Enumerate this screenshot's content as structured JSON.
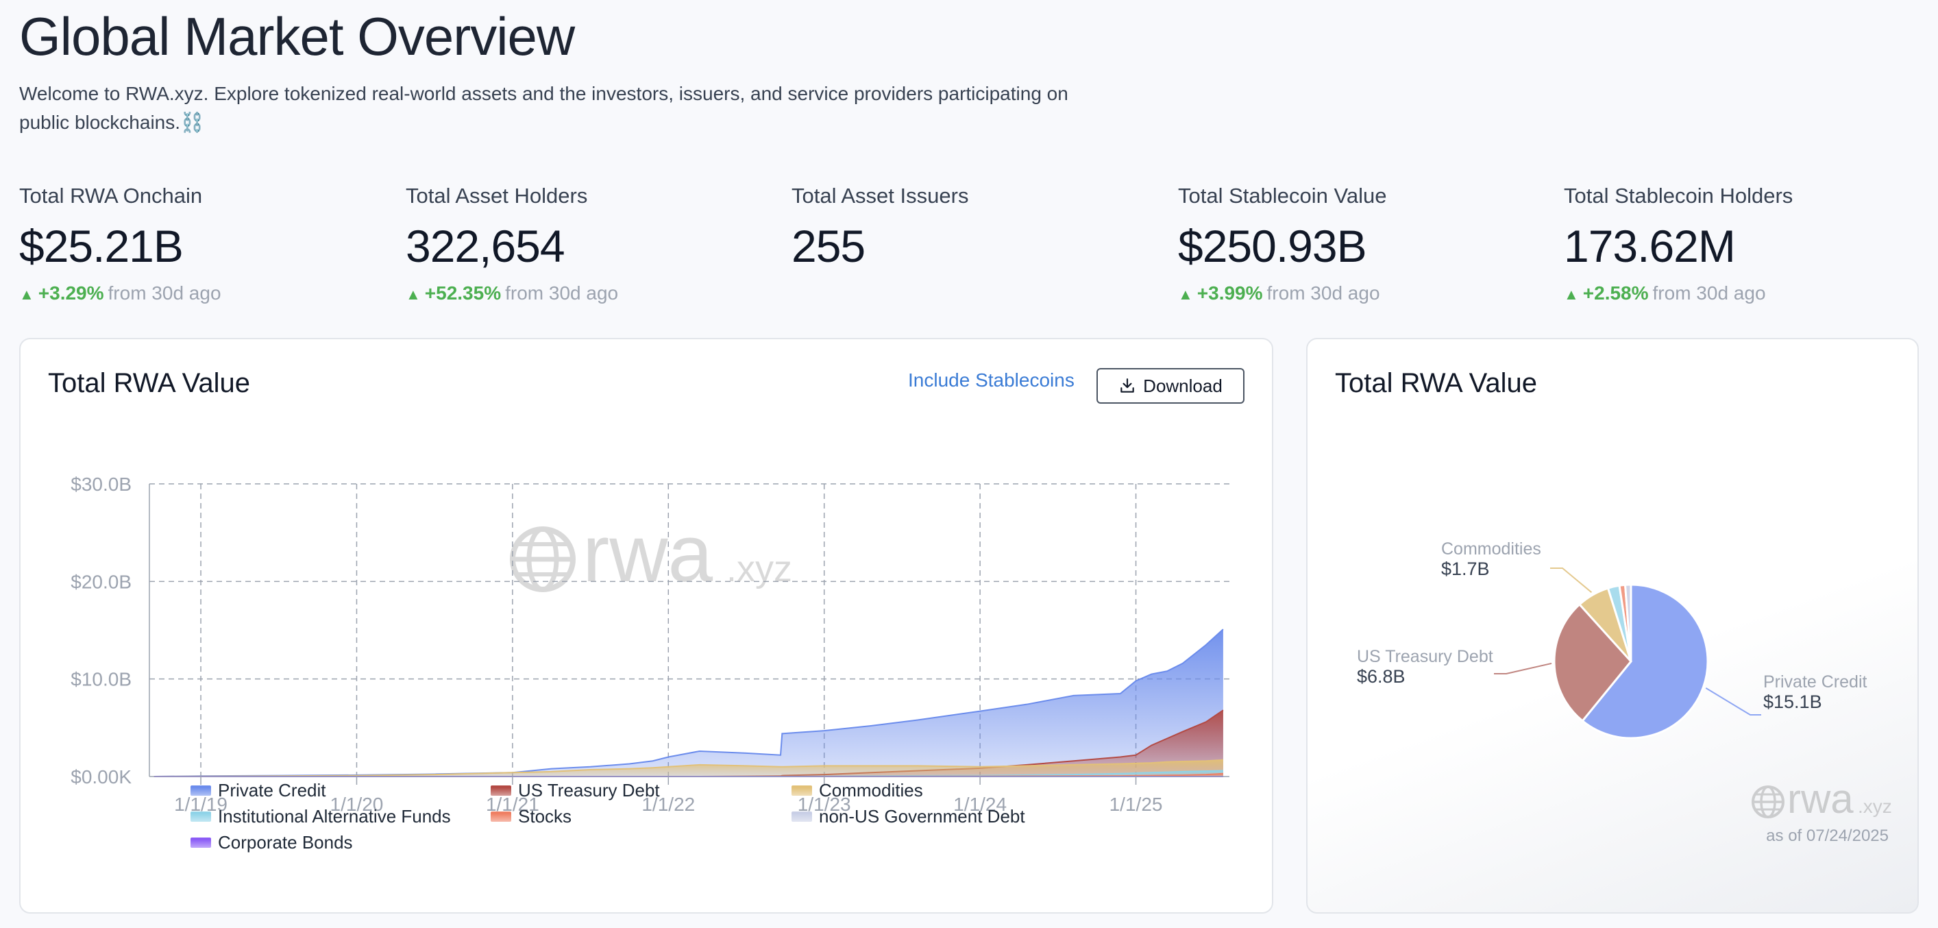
{
  "header": {
    "title": "Global Market Overview",
    "intro": "Welcome to RWA.xyz. Explore tokenized real-world assets and the investors, issuers, and service providers participating on public blockchains.⛓️"
  },
  "stats": [
    {
      "label": "Total RWA Onchain",
      "value": "$25.21B",
      "change": "+3.29%",
      "suffix": "from 30d ago"
    },
    {
      "label": "Total Asset Holders",
      "value": "322,654",
      "change": "+52.35%",
      "suffix": "from 30d ago"
    },
    {
      "label": "Total Asset Issuers",
      "value": "255",
      "change": "",
      "suffix": ""
    },
    {
      "label": "Total Stablecoin Value",
      "value": "$250.93B",
      "change": "+3.99%",
      "suffix": "from 30d ago"
    },
    {
      "label": "Total Stablecoin Holders",
      "value": "173.62M",
      "change": "+2.58%",
      "suffix": "from 30d ago"
    }
  ],
  "area_card": {
    "title": "Total RWA Value",
    "toggle_label": "Include Stablecoins",
    "download_label": "Download",
    "watermark_main": "rwa",
    "watermark_suffix": ".xyz"
  },
  "pie_card": {
    "title": "Total RWA Value",
    "watermark_main": "rwa",
    "watermark_suffix": ".xyz",
    "as_of": "as of 07/24/2025"
  },
  "colors": {
    "accent": "#3a7bd5",
    "positive": "#4caf50",
    "private_credit": "#6b8cec",
    "us_treasury": "#b34a44",
    "commodities": "#e2c178",
    "inst_alt_funds": "#8fd3e8",
    "stocks": "#ef7f63",
    "non_us_gov": "#c9cfe6",
    "corporate_bonds": "#8b5cf6"
  },
  "chart_data": [
    {
      "type": "area",
      "title": "Total RWA Value",
      "xlabel": "",
      "ylabel": "",
      "x_ticks": [
        "1/1/19",
        "1/1/20",
        "1/1/21",
        "1/1/22",
        "1/1/23",
        "1/1/24",
        "1/1/25"
      ],
      "y_ticks": [
        "$0.00K",
        "$10.0B",
        "$20.0B",
        "$30.0B"
      ],
      "ylim": [
        0,
        30
      ],
      "xlim": [
        2018.67,
        2025.6
      ],
      "y_unit": "B",
      "grid": true,
      "legend_position": "bottom",
      "x": [
        2018.7,
        2019.0,
        2019.5,
        2020.0,
        2020.5,
        2021.0,
        2021.25,
        2021.5,
        2021.75,
        2021.9,
        2022.0,
        2022.2,
        2022.5,
        2022.72,
        2022.73,
        2023.0,
        2023.3,
        2023.6,
        2024.0,
        2024.3,
        2024.6,
        2024.9,
        2025.0,
        2025.1,
        2025.2,
        2025.3,
        2025.45,
        2025.56
      ],
      "series": [
        {
          "name": "Private Credit",
          "values": [
            0,
            0.05,
            0.1,
            0.15,
            0.25,
            0.4,
            0.8,
            1.0,
            1.3,
            1.6,
            2.0,
            2.6,
            2.4,
            2.2,
            4.4,
            4.7,
            5.2,
            5.8,
            6.7,
            7.4,
            8.3,
            8.5,
            9.8,
            10.5,
            10.8,
            11.6,
            13.5,
            15.1
          ]
        },
        {
          "name": "US Treasury Debt",
          "values": [
            0,
            0,
            0,
            0,
            0,
            0,
            0,
            0,
            0,
            0,
            0,
            0,
            0.03,
            0.05,
            0.1,
            0.2,
            0.4,
            0.6,
            0.85,
            1.2,
            1.6,
            2.0,
            2.2,
            3.2,
            3.9,
            4.6,
            5.6,
            6.8
          ]
        },
        {
          "name": "Commodities",
          "values": [
            0,
            0.02,
            0.05,
            0.1,
            0.2,
            0.4,
            0.5,
            0.7,
            0.8,
            0.9,
            1.0,
            1.2,
            1.1,
            1.0,
            1.0,
            1.1,
            1.1,
            1.1,
            1.0,
            1.1,
            1.2,
            1.3,
            1.35,
            1.4,
            1.5,
            1.55,
            1.6,
            1.7
          ]
        },
        {
          "name": "Institutional Alternative Funds",
          "values": [
            0,
            0,
            0,
            0,
            0,
            0,
            0,
            0,
            0,
            0,
            0,
            0,
            0,
            0,
            0,
            0.02,
            0.05,
            0.08,
            0.1,
            0.15,
            0.2,
            0.3,
            0.35,
            0.4,
            0.45,
            0.5,
            0.55,
            0.6
          ]
        },
        {
          "name": "Stocks",
          "values": [
            0,
            0,
            0,
            0,
            0,
            0,
            0,
            0,
            0,
            0,
            0,
            0,
            0,
            0,
            0,
            0,
            0.01,
            0.02,
            0.03,
            0.04,
            0.05,
            0.06,
            0.08,
            0.1,
            0.12,
            0.14,
            0.2,
            0.3
          ]
        },
        {
          "name": "non-US Government Debt",
          "values": [
            0,
            0,
            0,
            0,
            0,
            0,
            0,
            0,
            0,
            0,
            0,
            0,
            0,
            0,
            0,
            0,
            0,
            0,
            0,
            0,
            0,
            0,
            0,
            0,
            0,
            0,
            0,
            0
          ]
        },
        {
          "name": "Corporate Bonds",
          "values": [
            0,
            0,
            0,
            0,
            0,
            0,
            0,
            0,
            0,
            0,
            0,
            0,
            0,
            0,
            0,
            0,
            0,
            0,
            0,
            0,
            0,
            0,
            0,
            0,
            0,
            0,
            0,
            0
          ]
        }
      ]
    },
    {
      "type": "pie",
      "title": "Total RWA Value",
      "slices": [
        {
          "name": "Private Credit",
          "label": "Private Credit",
          "value_label": "$15.1B",
          "value": 15.1
        },
        {
          "name": "US Treasury Debt",
          "label": "US Treasury Debt",
          "value_label": "$6.8B",
          "value": 6.8
        },
        {
          "name": "Commodities",
          "label": "Commodities",
          "value_label": "$1.7B",
          "value": 1.7
        },
        {
          "name": "Institutional Alternative Funds",
          "label": "",
          "value_label": "",
          "value": 0.6
        },
        {
          "name": "Stocks",
          "label": "",
          "value_label": "",
          "value": 0.3
        },
        {
          "name": "non-US Government Debt",
          "label": "",
          "value_label": "",
          "value": 0.3
        }
      ]
    }
  ]
}
